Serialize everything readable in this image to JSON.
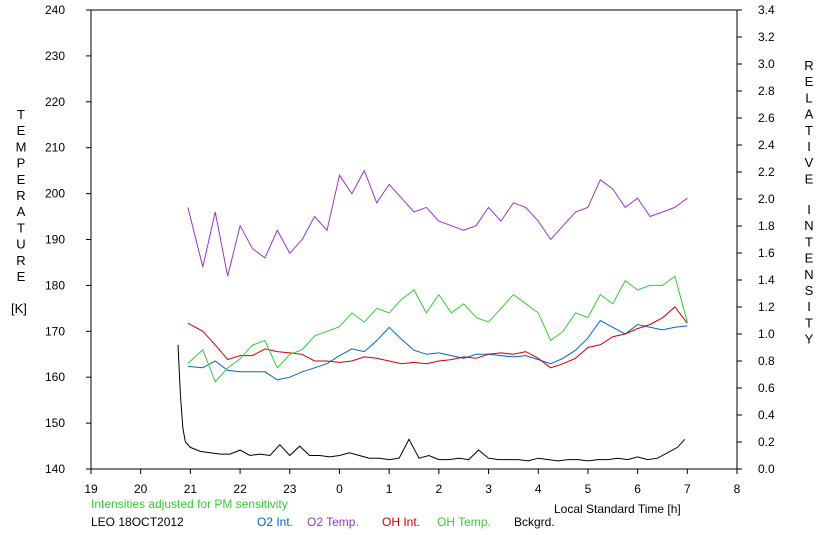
{
  "chart_data": {
    "type": "line",
    "xlabel": "Local Standard Time [h]",
    "x_ticks": [
      "19",
      "20",
      "21",
      "22",
      "23",
      "0",
      "1",
      "2",
      "3",
      "4",
      "5",
      "6",
      "7",
      "8"
    ],
    "xlim": [
      19,
      32
    ],
    "y_left": {
      "label_letters": [
        "T",
        "E",
        "M",
        "P",
        "E",
        "R",
        "A",
        "T",
        "U",
        "R",
        "E"
      ],
      "unit": "[K]",
      "ylim": [
        140,
        240
      ],
      "ticks": [
        "140",
        "150",
        "160",
        "170",
        "180",
        "190",
        "200",
        "210",
        "220",
        "230",
        "240"
      ]
    },
    "y_right": {
      "label_letters_1": [
        "R",
        "E",
        "L",
        "A",
        "T",
        "I",
        "V",
        "E"
      ],
      "label_letters_2": [
        "I",
        "N",
        "T",
        "E",
        "N",
        "S",
        "I",
        "T",
        "Y"
      ],
      "ylim": [
        0.0,
        3.4
      ],
      "ticks": [
        "0.0",
        "0.2",
        "0.4",
        "0.6",
        "0.8",
        "1.0",
        "1.2",
        "1.4",
        "1.6",
        "1.8",
        "2.0",
        "2.2",
        "2.4",
        "2.6",
        "2.8",
        "3.0",
        "3.2",
        "3.4"
      ]
    },
    "note": "Intensities adjusted for PM sensitivity",
    "station_label": "LEO 18OCT2012",
    "series": [
      {
        "name": "O2 Int.",
        "axis": "right",
        "color": "#0066cc",
        "x": [
          20.95,
          21.25,
          21.5,
          21.75,
          22.0,
          22.25,
          22.5,
          22.75,
          23.0,
          23.25,
          23.5,
          23.75,
          24.0,
          24.25,
          24.5,
          24.75,
          25.0,
          25.25,
          25.5,
          25.75,
          26.0,
          26.25,
          26.5,
          26.75,
          27.0,
          27.25,
          27.5,
          27.75,
          28.0,
          28.25,
          28.5,
          28.75,
          29.0,
          29.25,
          29.5,
          29.75,
          30.0,
          30.25,
          30.5,
          30.75,
          31.0
        ],
        "y": [
          0.76,
          0.75,
          0.8,
          0.73,
          0.72,
          0.72,
          0.72,
          0.66,
          0.68,
          0.72,
          0.75,
          0.78,
          0.84,
          0.89,
          0.87,
          0.95,
          1.05,
          0.96,
          0.88,
          0.85,
          0.86,
          0.84,
          0.82,
          0.85,
          0.85,
          0.84,
          0.83,
          0.84,
          0.81,
          0.78,
          0.82,
          0.88,
          0.97,
          1.1,
          1.05,
          1.0,
          1.07,
          1.05,
          1.03,
          1.05,
          1.06
        ]
      },
      {
        "name": "O2 Temp.",
        "axis": "left",
        "color": "#9933cc",
        "x": [
          20.95,
          21.25,
          21.5,
          21.75,
          22.0,
          22.25,
          22.5,
          22.75,
          23.0,
          23.25,
          23.5,
          23.75,
          24.0,
          24.25,
          24.5,
          24.75,
          25.0,
          25.25,
          25.5,
          25.75,
          26.0,
          26.25,
          26.5,
          26.75,
          27.0,
          27.25,
          27.5,
          27.75,
          28.0,
          28.25,
          28.5,
          28.75,
          29.0,
          29.25,
          29.5,
          29.75,
          30.0,
          30.25,
          30.5,
          30.75,
          31.0
        ],
        "y": [
          197,
          184,
          196,
          182,
          193,
          188,
          186,
          192,
          187,
          190,
          195,
          192,
          204,
          200,
          205,
          198,
          202,
          199,
          196,
          197,
          194,
          193,
          192,
          193,
          197,
          194,
          198,
          197,
          194,
          190,
          193,
          196,
          197,
          203,
          201,
          197,
          199,
          195,
          196,
          197,
          199
        ]
      },
      {
        "name": "OH Int.",
        "axis": "right",
        "color": "#cc0000",
        "x": [
          20.95,
          21.25,
          21.5,
          21.75,
          22.0,
          22.25,
          22.5,
          22.75,
          23.0,
          23.25,
          23.5,
          23.75,
          24.0,
          24.25,
          24.5,
          24.75,
          25.0,
          25.25,
          25.5,
          25.75,
          26.0,
          26.25,
          26.5,
          26.75,
          27.0,
          27.25,
          27.5,
          27.75,
          28.0,
          28.25,
          28.5,
          28.75,
          29.0,
          29.25,
          29.5,
          29.75,
          30.0,
          30.25,
          30.5,
          30.75,
          31.0
        ],
        "y": [
          1.08,
          1.02,
          0.92,
          0.81,
          0.84,
          0.84,
          0.89,
          0.87,
          0.86,
          0.85,
          0.8,
          0.8,
          0.79,
          0.8,
          0.83,
          0.82,
          0.8,
          0.78,
          0.79,
          0.78,
          0.8,
          0.81,
          0.83,
          0.82,
          0.85,
          0.86,
          0.85,
          0.87,
          0.82,
          0.75,
          0.78,
          0.82,
          0.9,
          0.92,
          0.98,
          1.0,
          1.04,
          1.07,
          1.12,
          1.2,
          1.08
        ]
      },
      {
        "name": "OH Temp.",
        "axis": "left",
        "color": "#33cc33",
        "x": [
          20.95,
          21.25,
          21.5,
          21.75,
          22.0,
          22.25,
          22.5,
          22.75,
          23.0,
          23.25,
          23.5,
          23.75,
          24.0,
          24.25,
          24.5,
          24.75,
          25.0,
          25.25,
          25.5,
          25.75,
          26.0,
          26.25,
          26.5,
          26.75,
          27.0,
          27.25,
          27.5,
          27.75,
          28.0,
          28.25,
          28.5,
          28.75,
          29.0,
          29.25,
          29.5,
          29.75,
          30.0,
          30.25,
          30.5,
          30.75,
          31.0
        ],
        "y": [
          163,
          166,
          159,
          162,
          164,
          167,
          168,
          162,
          165,
          166,
          169,
          170,
          171,
          174,
          172,
          175,
          174,
          177,
          179,
          174,
          178,
          174,
          176,
          173,
          172,
          175,
          178,
          176,
          174,
          168,
          170,
          174,
          173,
          178,
          176,
          181,
          179,
          180,
          180,
          182,
          172
        ]
      },
      {
        "name": "Bckgrd.",
        "axis": "right",
        "color": "#000000",
        "x": [
          20.75,
          20.8,
          20.85,
          20.9,
          21.0,
          21.2,
          21.4,
          21.6,
          21.8,
          22.0,
          22.2,
          22.4,
          22.6,
          22.8,
          23.0,
          23.2,
          23.4,
          23.6,
          23.8,
          24.0,
          24.2,
          24.4,
          24.6,
          24.8,
          25.0,
          25.2,
          25.4,
          25.6,
          25.8,
          26.0,
          26.2,
          26.4,
          26.6,
          26.8,
          27.0,
          27.2,
          27.4,
          27.6,
          27.8,
          28.0,
          28.2,
          28.4,
          28.6,
          28.8,
          29.0,
          29.2,
          29.4,
          29.6,
          29.8,
          30.0,
          30.2,
          30.4,
          30.6,
          30.8,
          30.95
        ],
        "y": [
          0.92,
          0.55,
          0.3,
          0.2,
          0.16,
          0.13,
          0.12,
          0.11,
          0.11,
          0.14,
          0.1,
          0.11,
          0.1,
          0.18,
          0.1,
          0.17,
          0.1,
          0.1,
          0.09,
          0.1,
          0.12,
          0.1,
          0.08,
          0.08,
          0.07,
          0.08,
          0.22,
          0.08,
          0.1,
          0.07,
          0.07,
          0.08,
          0.07,
          0.14,
          0.08,
          0.07,
          0.07,
          0.07,
          0.06,
          0.08,
          0.07,
          0.06,
          0.07,
          0.07,
          0.06,
          0.07,
          0.07,
          0.08,
          0.07,
          0.09,
          0.07,
          0.08,
          0.12,
          0.16,
          0.22
        ]
      }
    ]
  }
}
